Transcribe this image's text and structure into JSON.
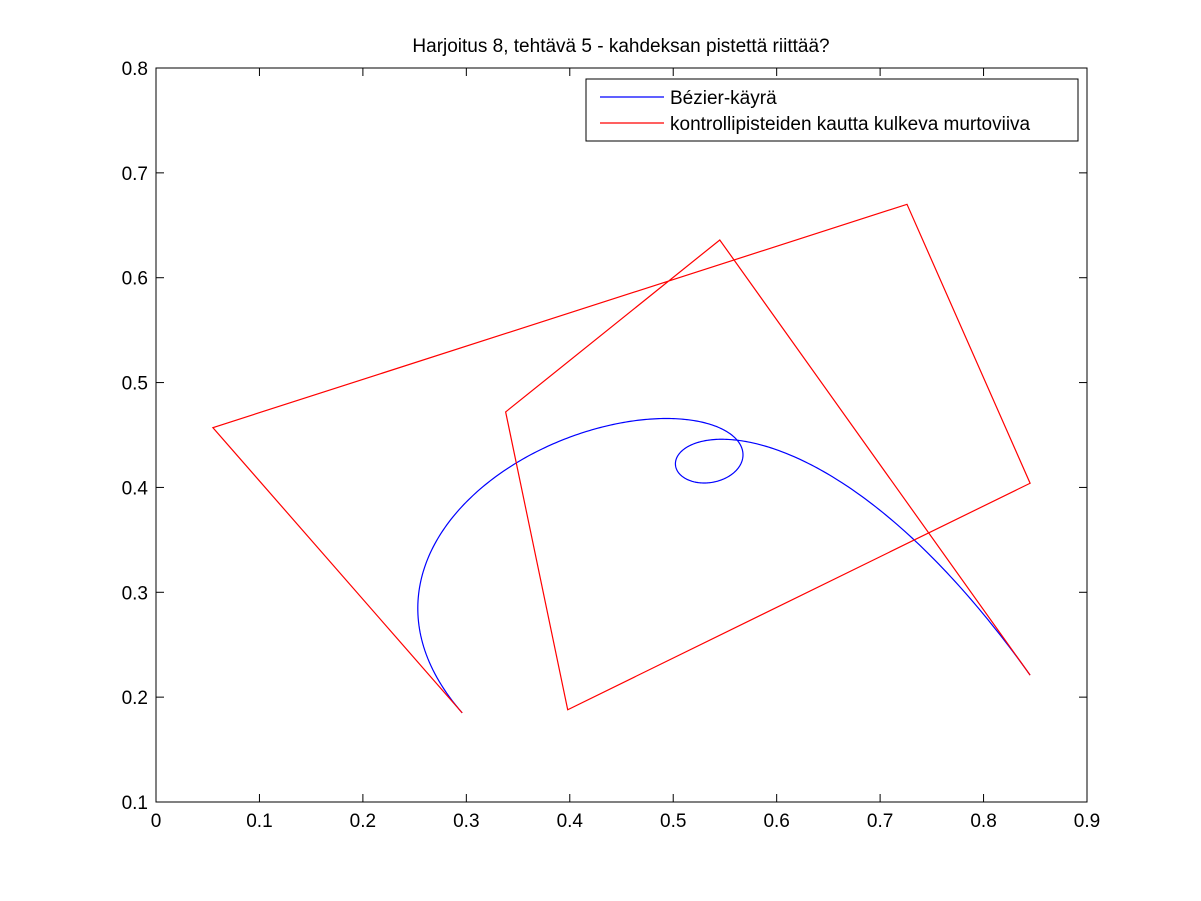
{
  "chart_data": {
    "type": "line",
    "title": "Harjoitus 8, tehtävä 5 - kahdeksan pistettä riittää?",
    "xlabel": "",
    "ylabel": "",
    "xlim": [
      0,
      0.9
    ],
    "ylim": [
      0.1,
      0.8
    ],
    "x_ticks": [
      0,
      0.1,
      0.2,
      0.3,
      0.4,
      0.5,
      0.6,
      0.7,
      0.8,
      0.9
    ],
    "y_ticks": [
      0.1,
      0.2,
      0.3,
      0.4,
      0.5,
      0.6,
      0.7,
      0.8
    ],
    "x_tick_labels": [
      "0",
      "0.1",
      "0.2",
      "0.3",
      "0.4",
      "0.5",
      "0.6",
      "0.7",
      "0.8",
      "0.9"
    ],
    "y_tick_labels": [
      "0.1",
      "0.2",
      "0.3",
      "0.4",
      "0.5",
      "0.6",
      "0.7",
      "0.8"
    ],
    "grid": false,
    "legend_position": "top-right",
    "series": [
      {
        "name": "Bézier-käyrä",
        "color": "#0000ff",
        "curve": "bezier",
        "control_points": [
          [
            0.296,
            0.185
          ],
          [
            0.055,
            0.457
          ],
          [
            0.726,
            0.67
          ],
          [
            0.845,
            0.404
          ],
          [
            0.398,
            0.188
          ],
          [
            0.338,
            0.472
          ],
          [
            0.545,
            0.636
          ],
          [
            0.845,
            0.221
          ]
        ]
      },
      {
        "name": "kontrollipisteiden kautta kulkeva murtoviiva",
        "color": "#ff0000",
        "x": [
          0.296,
          0.055,
          0.726,
          0.845,
          0.398,
          0.338,
          0.545,
          0.845
        ],
        "y": [
          0.185,
          0.457,
          0.67,
          0.404,
          0.188,
          0.472,
          0.636,
          0.221
        ]
      }
    ]
  }
}
